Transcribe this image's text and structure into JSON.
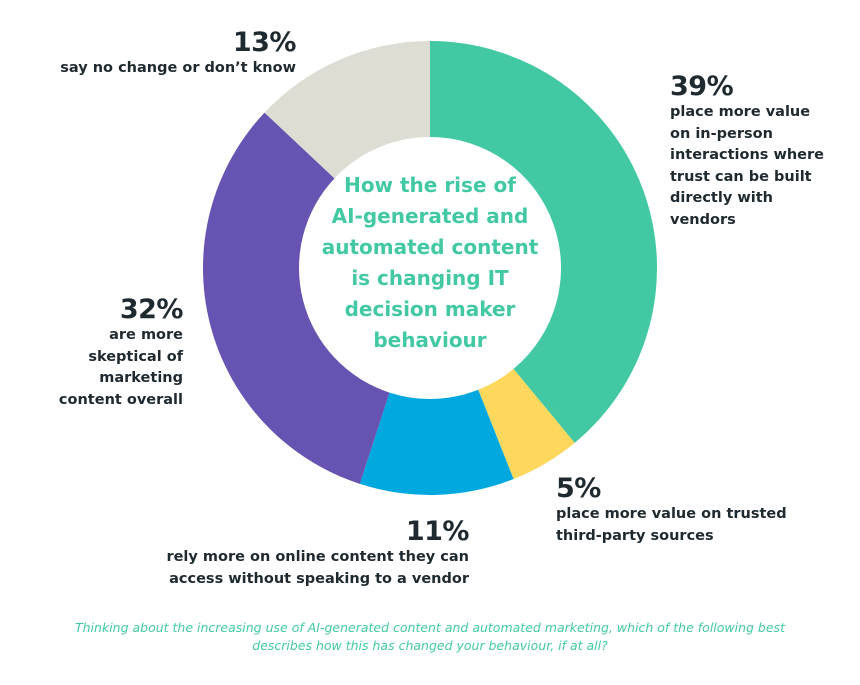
{
  "chart_data": {
    "type": "pie",
    "title": "How the rise of AI-generated and automated content is changing IT decision maker behaviour",
    "values": [
      39,
      5,
      11,
      32,
      13
    ],
    "colors": [
      "#42c9a4",
      "#fdd85c",
      "#00a8e0",
      "#6753b1",
      "#ddddd4"
    ]
  },
  "labels": [
    {
      "percent": "39%",
      "lines": [
        "place more value",
        "on in-person",
        "interactions where",
        "trust can be built",
        "directly with",
        "vendors"
      ]
    },
    {
      "percent": "5%",
      "lines": [
        "place more value on trusted",
        "third-party sources"
      ]
    },
    {
      "percent": "11%",
      "lines": [
        "rely more on online content they can",
        "access without speaking to a vendor"
      ]
    },
    {
      "percent": "32%",
      "lines": [
        "are more",
        "skeptical of",
        "marketing",
        "content overall"
      ]
    },
    {
      "percent": "13%",
      "lines": [
        "say no change or don’t know"
      ]
    }
  ],
  "center_title_lines": [
    "How the rise of",
    "AI-generated and",
    "automated content",
    "is changing IT",
    "decision maker",
    "behaviour"
  ],
  "footnote_lines": [
    "Thinking about the increasing use of AI-generated content and automated marketing, which of the following best",
    "describes how this has changed your behaviour, if at all?"
  ]
}
